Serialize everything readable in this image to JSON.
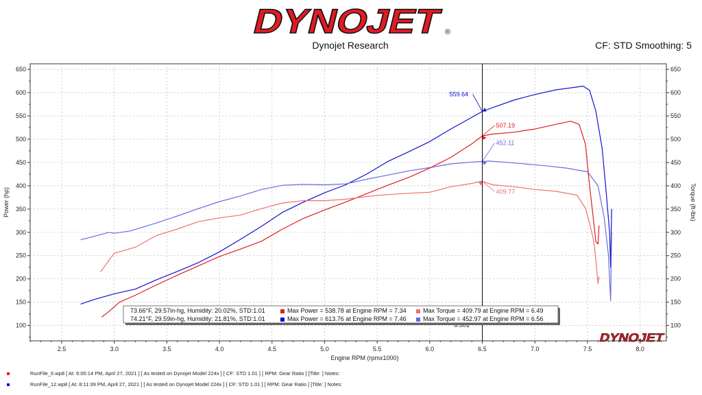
{
  "header": {
    "brand": "DYNOJET",
    "trademark": "®",
    "subtitle": "Dynojet Research",
    "correction": "CF: STD Smoothing: 5"
  },
  "watermark": "DYNOJET",
  "colors": {
    "run6_power": "#e01c1c",
    "run6_torque": "#f07070",
    "run12_power": "#1010d0",
    "run12_torque": "#6a6ae0",
    "brand": "#e01b24"
  },
  "cursor": {
    "rpm_label": "6.501"
  },
  "legend": {
    "rows": [
      {
        "conditions": "73.66°F, 29.57in-hg, Humidity: 20.02%, STD:1.01",
        "power": "Max Power = 538.78 at Engine RPM = 7.34",
        "torque": "Max Torque = 409.79 at Engine RPM = 6.49"
      },
      {
        "conditions": "74.21°F, 29.59in-hg, Humidity: 21.81%, STD:1.01",
        "power": "Max Power = 613.76 at Engine RPM = 7.46",
        "torque": "Max Torque = 452.97 at Engine RPM = 6.56"
      }
    ]
  },
  "runs": [
    {
      "text": "RunFile_6.wp8  [ At:  6:00:14 PM, April 27, 2021  ]  [ As tested on Dynojet Model 224x  ]  [ CF:  STD 1.01  ]  [ RPM:  Gear Ratio ]  [Title:  ]   Notes:"
    },
    {
      "text": "RunFile_12.wp8  [ At:  8:11:39 PM, April 27, 2021  ]  [ As tested on Dynojet Model 224x  ]  [ CF:  STD 1.01  ]  [ RPM:  Gear Ratio ]  [Title:  ]   Notes:"
    }
  ],
  "chart_data": {
    "type": "line",
    "xlabel": "Engine RPM (rpmx1000)",
    "ylabel": "Power (hp)",
    "y2label": "Torque (ft-lbs)",
    "xlim": [
      2.2,
      8.25
    ],
    "ylim": [
      67,
      662
    ],
    "xticks": [
      2.5,
      3.0,
      3.5,
      4.0,
      4.5,
      5.0,
      5.5,
      6.0,
      6.5,
      7.0,
      7.5,
      8.0
    ],
    "yticks": [
      100,
      150,
      200,
      250,
      300,
      350,
      400,
      450,
      500,
      550,
      600,
      650
    ],
    "annotations": [
      {
        "text": "559.64",
        "x": 6.5,
        "y": 559.64,
        "series": "run12_power"
      },
      {
        "text": "452.11",
        "x": 6.5,
        "y": 452.11,
        "series": "run12_torque"
      },
      {
        "text": "507.19",
        "x": 6.5,
        "y": 507.19,
        "series": "run6_power"
      },
      {
        "text": "409.77",
        "x": 6.5,
        "y": 409.77,
        "series": "run6_torque"
      }
    ],
    "series": [
      {
        "color": "#1010d0",
        "x": [
          2.68,
          2.8,
          3.0,
          3.2,
          3.4,
          3.6,
          3.8,
          4.0,
          4.2,
          4.4,
          4.6,
          4.8,
          5.0,
          5.2,
          5.4,
          5.6,
          5.8,
          6.0,
          6.2,
          6.4,
          6.5,
          6.6,
          6.8,
          7.0,
          7.2,
          7.4,
          7.46,
          7.52,
          7.58,
          7.64,
          7.68,
          7.71,
          7.72,
          7.73
        ],
        "y": [
          146,
          155,
          168,
          178,
          198,
          216,
          235,
          258,
          285,
          313,
          343,
          365,
          385,
          402,
          425,
          452,
          473,
          495,
          522,
          547,
          559.6,
          568,
          584,
          596,
          606,
          612,
          614,
          605,
          560,
          480,
          380,
          300,
          225,
          350
        ]
      },
      {
        "color": "#6a6ae0",
        "x": [
          2.68,
          2.8,
          2.95,
          3.0,
          3.15,
          3.4,
          3.6,
          3.8,
          4.0,
          4.2,
          4.4,
          4.6,
          4.8,
          5.0,
          5.2,
          5.4,
          5.6,
          5.8,
          6.0,
          6.2,
          6.4,
          6.5,
          6.56,
          6.7,
          6.9,
          7.1,
          7.3,
          7.5,
          7.6,
          7.66,
          7.7,
          7.72,
          7.73
        ],
        "y": [
          284,
          291,
          300,
          298,
          303,
          320,
          335,
          351,
          366,
          378,
          392,
          401,
          403,
          402,
          404,
          414,
          423,
          432,
          439,
          447,
          451,
          452.1,
          453,
          451,
          447,
          443,
          438,
          430,
          400,
          330,
          250,
          153,
          300
        ]
      },
      {
        "color": "#e01c1c",
        "x": [
          2.88,
          2.95,
          3.05,
          3.2,
          3.4,
          3.6,
          3.8,
          4.0,
          4.2,
          4.4,
          4.6,
          4.8,
          5.0,
          5.2,
          5.4,
          5.6,
          5.8,
          6.0,
          6.2,
          6.4,
          6.5,
          6.6,
          6.8,
          7.0,
          7.2,
          7.34,
          7.42,
          7.48,
          7.52,
          7.56,
          7.58,
          7.6,
          7.61
        ],
        "y": [
          118,
          130,
          150,
          165,
          187,
          208,
          228,
          248,
          264,
          281,
          307,
          330,
          348,
          365,
          383,
          401,
          418,
          438,
          461,
          490,
          507.2,
          511,
          515,
          522,
          532,
          538.8,
          532,
          490,
          400,
          320,
          280,
          275,
          315
        ]
      },
      {
        "color": "#f07070",
        "x": [
          2.87,
          2.95,
          3.0,
          3.2,
          3.4,
          3.6,
          3.8,
          4.0,
          4.2,
          4.4,
          4.6,
          4.8,
          5.0,
          5.2,
          5.4,
          5.6,
          5.8,
          6.0,
          6.2,
          6.4,
          6.49,
          6.6,
          6.8,
          7.0,
          7.2,
          7.4,
          7.48,
          7.52,
          7.56,
          7.58,
          7.6,
          7.61
        ],
        "y": [
          215,
          240,
          255,
          268,
          293,
          307,
          323,
          331,
          337,
          351,
          363,
          368,
          368,
          371,
          377,
          381,
          384,
          386,
          398,
          405,
          409.8,
          402,
          398,
          392,
          388,
          380,
          352,
          320,
          280,
          240,
          190,
          205
        ]
      }
    ]
  }
}
